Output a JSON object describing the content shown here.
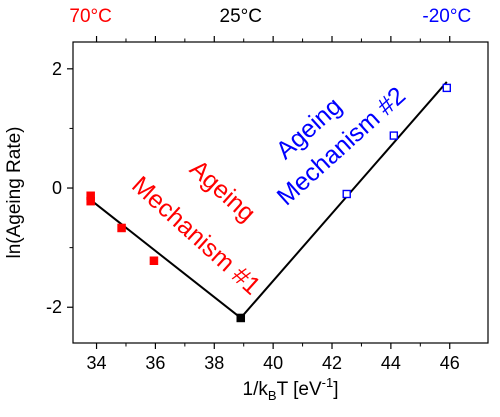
{
  "chart_data": {
    "type": "scatter",
    "xlabel": "1/k",
    "xlabel_sub": "B",
    "xlabel_rest": "T  [eV",
    "xlabel_sup": "-1",
    "xlabel_close": "]",
    "ylabel": "ln(Ageing Rate)",
    "xlim": [
      33.2,
      47.3
    ],
    "ylim": [
      -2.6,
      2.45
    ],
    "x_ticks": [
      34,
      36,
      38,
      40,
      42,
      44,
      46
    ],
    "y_ticks": [
      -2,
      0,
      2
    ],
    "top_axis_labels": [
      {
        "text": "70°C",
        "x": 33.8,
        "color": "#ff0000"
      },
      {
        "text": "25°C",
        "x": 38.9,
        "color": "#000000"
      },
      {
        "text": "-20°C",
        "x": 45.9,
        "color": "#0000ff"
      }
    ],
    "series": [
      {
        "color": "#ff0000",
        "marker": "filled-square",
        "points": [
          [
            33.8,
            -0.13
          ],
          [
            33.8,
            -0.22
          ],
          [
            34.85,
            -0.67
          ],
          [
            35.95,
            -1.22
          ]
        ]
      },
      {
        "color": "#0000ff",
        "marker": "open-square",
        "points": [
          [
            42.5,
            -0.1
          ],
          [
            44.1,
            0.88
          ],
          [
            45.9,
            1.68
          ]
        ]
      },
      {
        "color": "#000000",
        "marker": "filled-square",
        "points": [
          [
            38.9,
            -2.18
          ]
        ]
      }
    ],
    "fit_lines": [
      {
        "color": "#000000",
        "points": [
          [
            33.8,
            -0.2
          ],
          [
            38.9,
            -2.18
          ]
        ]
      },
      {
        "color": "#000000",
        "points": [
          [
            38.9,
            -2.18
          ],
          [
            45.9,
            1.78
          ]
        ]
      }
    ],
    "annotations": [
      {
        "text": "Ageing",
        "x": 38.1,
        "y": -0.15,
        "color": "#ff0000",
        "rotate": 42
      },
      {
        "text": "Mechanism #1",
        "x": 37.2,
        "y": -0.9,
        "color": "#ff0000",
        "rotate": 42
      },
      {
        "text": "Ageing",
        "x": 41.4,
        "y": 0.9,
        "color": "#0000ff",
        "rotate": -42
      },
      {
        "text": "Mechanism #2",
        "x": 42.5,
        "y": 0.6,
        "color": "#0000ff",
        "rotate": -42
      }
    ]
  }
}
